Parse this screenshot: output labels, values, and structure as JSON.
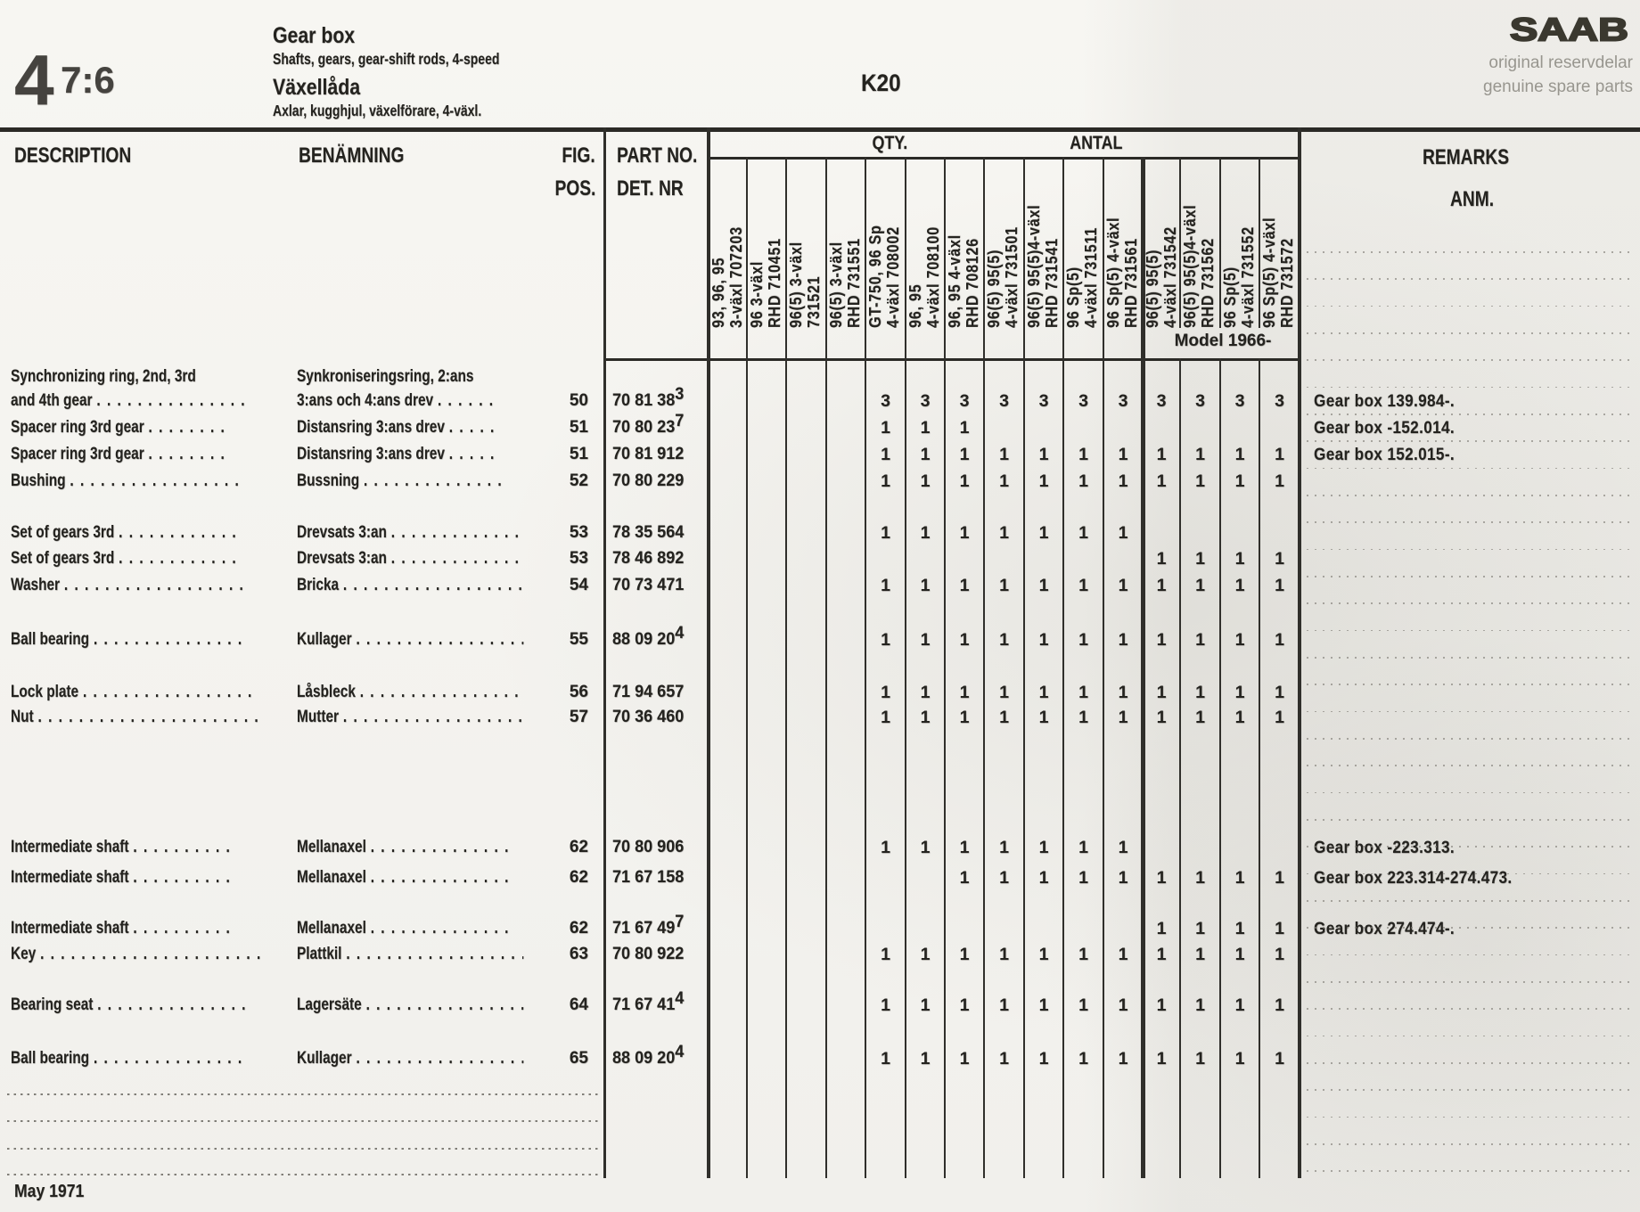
{
  "page": {
    "section_number": "4",
    "section_page": "7:6",
    "title_en": "Gear box",
    "subtitle_en": "Shafts, gears, gear-shift rods, 4-speed",
    "title_sv": "Växellåda",
    "subtitle_sv": "Axlar, kugghjul, växelförare, 4-växl.",
    "code": "K20",
    "brand": "SAAB",
    "brand_tagline_sv": "original reservdelar",
    "brand_tagline_en": "genuine spare parts",
    "footer_date": "May 1971"
  },
  "table": {
    "col_description": "DESCRIPTION",
    "col_benamning": "BENÄMNING",
    "col_fig": "FIG.",
    "col_pos": "POS.",
    "col_part": "PART NO.",
    "col_det": "DET. NR",
    "col_qty": "QTY.",
    "col_antal": "ANTAL",
    "col_remarks": "REMARKS",
    "col_anm": "ANM.",
    "model_note": "Model 1966-",
    "variant_columns": [
      {
        "line1": "93, 96, 95",
        "line2": "3-växl 707203"
      },
      {
        "line1": "96 3-växl",
        "line2": "RHD 710451"
      },
      {
        "line1": "96(5)  3-växl",
        "line2": "731521"
      },
      {
        "line1": "96(5)  3-växl",
        "line2": "RHD 731551"
      },
      {
        "line1": "GT-750, 96 Sp",
        "line2": "4-växl 708002"
      },
      {
        "line1": "96, 95",
        "line2": "4-växl 708100"
      },
      {
        "line1": "96, 95 4-växl",
        "line2": "RHD 708126"
      },
      {
        "line1": "96(5)  95(5)",
        "line2": "4-växl 731501"
      },
      {
        "line1": "96(5) 95(5)4-växl",
        "line2": "RHD 731541"
      },
      {
        "line1": "96 Sp(5)",
        "line2": "4-växl 731511"
      },
      {
        "line1": "96 Sp(5) 4-växl",
        "line2": "RHD 731561"
      },
      {
        "line1": "96(5)  95(5)",
        "line2": "4-växl 731542"
      },
      {
        "line1": "96(5) 95(5)4-växl",
        "line2": "RHD 731562"
      },
      {
        "line1": "96 Sp(5)",
        "line2": "4-växl 731552"
      },
      {
        "line1": "96 Sp(5) 4-växl",
        "line2": "RHD 731572"
      }
    ],
    "rows": [
      {
        "en": "Synchronizing ring, 2nd, 3rd",
        "en_dots": "",
        "sv": "Synkroniseringsring, 2:ans",
        "sv_dots": "",
        "fig": "",
        "part": "",
        "sup": "",
        "qty": [
          "",
          "",
          "",
          "",
          "",
          "",
          "",
          "",
          "",
          "",
          "",
          "",
          "",
          "",
          ""
        ],
        "remark": ""
      },
      {
        "en": "and 4th gear",
        "en_dots": "...............",
        "sv": "3:ans och 4:ans drev",
        "sv_dots": "......",
        "fig": "50",
        "part": "70 81 38",
        "sup": "3",
        "qty": [
          "",
          "",
          "",
          "",
          "3",
          "3",
          "3",
          "3",
          "3",
          "3",
          "3",
          "3",
          "3",
          "3",
          "3"
        ],
        "remark": "Gear box 139.984-."
      },
      {
        "en": "Spacer ring 3rd gear",
        "en_dots": "........",
        "sv": "Distansring 3:ans drev",
        "sv_dots": ".....",
        "fig": "51",
        "part": "70 80 23",
        "sup": "7",
        "qty": [
          "",
          "",
          "",
          "",
          "1",
          "1",
          "1",
          "",
          "",
          "",
          "",
          "",
          "",
          "",
          ""
        ],
        "remark": "Gear box -152.014."
      },
      {
        "en": "Spacer ring 3rd gear",
        "en_dots": "........",
        "sv": "Distansring 3:ans drev",
        "sv_dots": ".....",
        "fig": "51",
        "part": "70 81 912",
        "sup": "",
        "qty": [
          "",
          "",
          "",
          "",
          "1",
          "1",
          "1",
          "1",
          "1",
          "1",
          "1",
          "1",
          "1",
          "1",
          "1"
        ],
        "remark": "Gear box 152.015-."
      },
      {
        "en": "Bushing",
        "en_dots": ".................",
        "sv": "Bussning",
        "sv_dots": "..............",
        "fig": "52",
        "part": "70 80 229",
        "sup": "",
        "qty": [
          "",
          "",
          "",
          "",
          "1",
          "1",
          "1",
          "1",
          "1",
          "1",
          "1",
          "1",
          "1",
          "1",
          "1"
        ],
        "remark": ""
      },
      {
        "en": "Set of gears 3rd",
        "en_dots": "............",
        "sv": "Drevsats 3:an",
        "sv_dots": ".............",
        "fig": "53",
        "part": "78 35 564",
        "sup": "",
        "qty": [
          "",
          "",
          "",
          "",
          "1",
          "1",
          "1",
          "1",
          "1",
          "1",
          "1",
          "",
          "",
          "",
          ""
        ],
        "remark": ""
      },
      {
        "en": "Set of gears 3rd",
        "en_dots": "............",
        "sv": "Drevsats 3:an",
        "sv_dots": ".............",
        "fig": "53",
        "part": "78 46 892",
        "sup": "",
        "qty": [
          "",
          "",
          "",
          "",
          "",
          "",
          "",
          "",
          "",
          "",
          "",
          "1",
          "1",
          "1",
          "1"
        ],
        "remark": ""
      },
      {
        "en": "Washer",
        "en_dots": "..................",
        "sv": "Bricka",
        "sv_dots": "..................",
        "fig": "54",
        "part": "70 73 471",
        "sup": "",
        "qty": [
          "",
          "",
          "",
          "",
          "1",
          "1",
          "1",
          "1",
          "1",
          "1",
          "1",
          "1",
          "1",
          "1",
          "1"
        ],
        "remark": ""
      },
      {
        "en": "Ball bearing",
        "en_dots": "...............",
        "sv": "Kullager",
        "sv_dots": "..................",
        "fig": "55",
        "part": "88 09 20",
        "sup": "4",
        "qty": [
          "",
          "",
          "",
          "",
          "1",
          "1",
          "1",
          "1",
          "1",
          "1",
          "1",
          "1",
          "1",
          "1",
          "1"
        ],
        "remark": ""
      },
      {
        "en": "Lock plate",
        "en_dots": ".................",
        "sv": "Låsbleck",
        "sv_dots": "..................",
        "fig": "56",
        "part": "71 94 657",
        "sup": "",
        "qty": [
          "",
          "",
          "",
          "",
          "1",
          "1",
          "1",
          "1",
          "1",
          "1",
          "1",
          "1",
          "1",
          "1",
          "1"
        ],
        "remark": ""
      },
      {
        "en": "Nut",
        "en_dots": ".......................",
        "sv": "Mutter",
        "sv_dots": "...................",
        "fig": "57",
        "part": "70 36 460",
        "sup": "",
        "qty": [
          "",
          "",
          "",
          "",
          "1",
          "1",
          "1",
          "1",
          "1",
          "1",
          "1",
          "1",
          "1",
          "1",
          "1"
        ],
        "remark": ""
      },
      {
        "en": "Intermediate shaft",
        "en_dots": "..........",
        "sv": "Mellanaxel",
        "sv_dots": "..............",
        "fig": "62",
        "part": "70 80 906",
        "sup": "",
        "qty": [
          "",
          "",
          "",
          "",
          "1",
          "1",
          "1",
          "1",
          "1",
          "1",
          "1",
          "",
          "",
          "",
          ""
        ],
        "remark": "Gear box -223.313."
      },
      {
        "en": "Intermediate shaft",
        "en_dots": "..........",
        "sv": "Mellanaxel",
        "sv_dots": "..............",
        "fig": "62",
        "part": "71 67 158",
        "sup": "",
        "qty": [
          "",
          "",
          "",
          "",
          "",
          "",
          "1",
          "1",
          "1",
          "1",
          "1",
          "1",
          "1",
          "1",
          "1"
        ],
        "remark": "Gear box 223.314-274.473."
      },
      {
        "en": "Intermediate shaft",
        "en_dots": "..........",
        "sv": "Mellanaxel",
        "sv_dots": "..............",
        "fig": "62",
        "part": "71 67 49",
        "sup": "7",
        "qty": [
          "",
          "",
          "",
          "",
          "",
          "",
          "",
          "",
          "",
          "",
          "",
          "1",
          "1",
          "1",
          "1"
        ],
        "remark": "Gear box 274.474-."
      },
      {
        "en": "Key",
        "en_dots": "......................",
        "sv": "Plattkil",
        "sv_dots": "..................",
        "fig": "63",
        "part": "70 80 922",
        "sup": "",
        "qty": [
          "",
          "",
          "",
          "",
          "1",
          "1",
          "1",
          "1",
          "1",
          "1",
          "1",
          "1",
          "1",
          "1",
          "1"
        ],
        "remark": ""
      },
      {
        "en": "Bearing seat",
        "en_dots": "...............",
        "sv": "Lagersäte",
        "sv_dots": ".................",
        "fig": "64",
        "part": "71 67 41",
        "sup": "4",
        "qty": [
          "",
          "",
          "",
          "",
          "1",
          "1",
          "1",
          "1",
          "1",
          "1",
          "1",
          "1",
          "1",
          "1",
          "1"
        ],
        "remark": ""
      },
      {
        "en": "Ball bearing",
        "en_dots": "...............",
        "sv": "Kullager",
        "sv_dots": "..................",
        "fig": "65",
        "part": "88 09 20",
        "sup": "4",
        "qty": [
          "",
          "",
          "",
          "",
          "1",
          "1",
          "1",
          "1",
          "1",
          "1",
          "1",
          "1",
          "1",
          "1",
          "1"
        ],
        "remark": ""
      }
    ]
  }
}
